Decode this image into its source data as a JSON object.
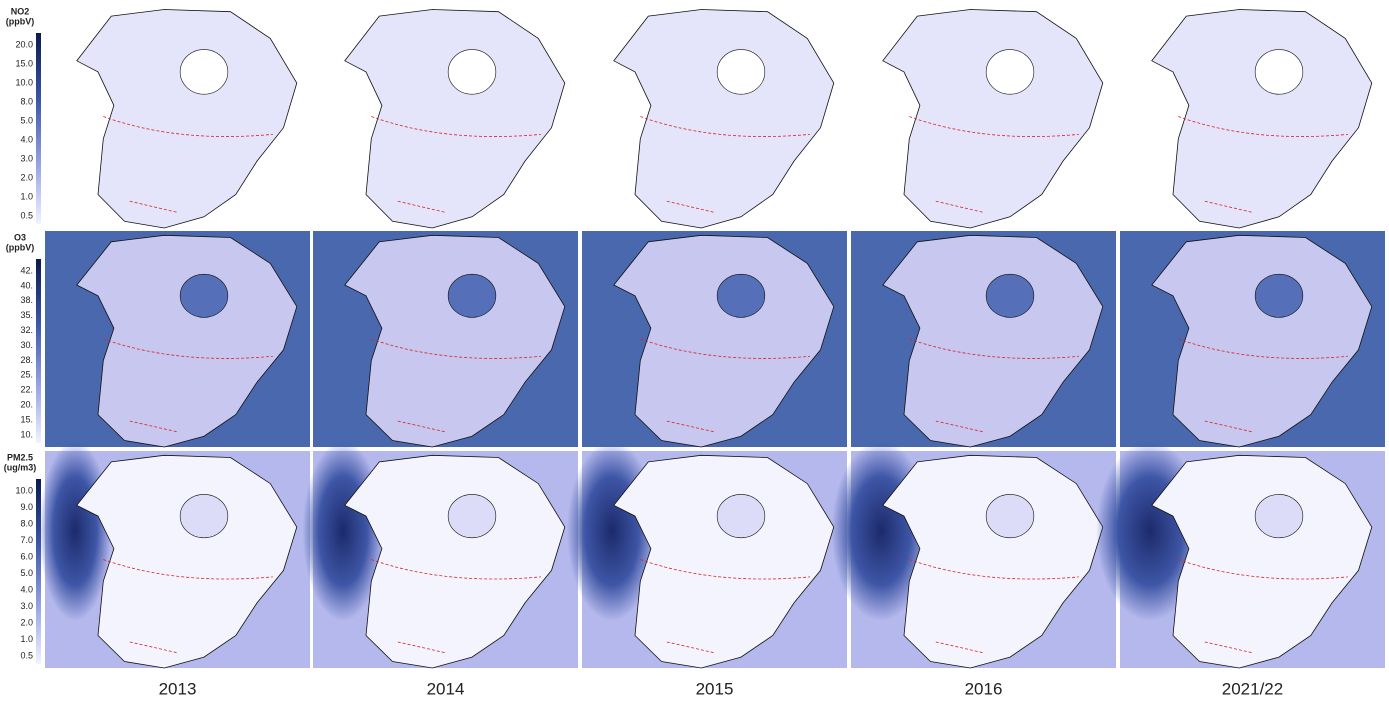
{
  "rows": [
    {
      "title": "NO2",
      "unit": "(ppbV)",
      "ticks": [
        "20.0",
        "15.0",
        "10.0",
        "8.0",
        "5.0",
        "4.0",
        "3.0",
        "2.0",
        "1.0",
        "0.5"
      ]
    },
    {
      "title": "O3",
      "unit": "(ppbV)",
      "ticks": [
        "42.",
        "40.",
        "38.",
        "35.",
        "32.",
        "30.",
        "28.",
        "25.",
        "22.",
        "20.",
        "15.",
        "10."
      ]
    },
    {
      "title": "PM2.5",
      "unit": "(ug/m3)",
      "ticks": [
        "10.0",
        "9.0",
        "8.0",
        "7.0",
        "6.0",
        "5.0",
        "4.0",
        "3.0",
        "2.0",
        "1.0",
        "0.5"
      ]
    }
  ],
  "columns": [
    "2013",
    "2014",
    "2015",
    "2016",
    "2021/22"
  ]
}
